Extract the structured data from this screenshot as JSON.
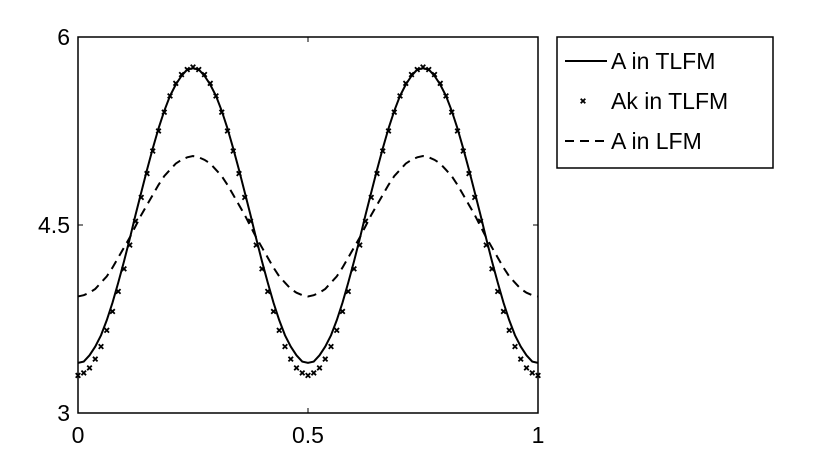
{
  "chart_data": {
    "type": "line",
    "x": [
      0,
      0.0125,
      0.025,
      0.0375,
      0.05,
      0.0625,
      0.075,
      0.0875,
      0.1,
      0.1125,
      0.125,
      0.1375,
      0.15,
      0.1625,
      0.175,
      0.1875,
      0.2,
      0.2125,
      0.225,
      0.2375,
      0.25,
      0.2625,
      0.275,
      0.2875,
      0.3,
      0.3125,
      0.325,
      0.3375,
      0.35,
      0.3625,
      0.375,
      0.3875,
      0.4,
      0.4125,
      0.425,
      0.4375,
      0.45,
      0.4625,
      0.475,
      0.4875,
      0.5,
      0.5125,
      0.525,
      0.5375,
      0.55,
      0.5625,
      0.575,
      0.5875,
      0.6,
      0.6125,
      0.625,
      0.6375,
      0.65,
      0.6625,
      0.675,
      0.6875,
      0.7,
      0.7125,
      0.725,
      0.7375,
      0.75,
      0.7625,
      0.775,
      0.7875,
      0.8,
      0.8125,
      0.825,
      0.8375,
      0.85,
      0.8625,
      0.875,
      0.8875,
      0.9,
      0.9125,
      0.925,
      0.9375,
      0.95,
      0.9625,
      0.975,
      0.9875,
      1
    ],
    "series": [
      {
        "name": "A in TLFM",
        "color": "#000000",
        "style": "solid",
        "values": [
          3.4,
          3.41,
          3.46,
          3.53,
          3.62,
          3.74,
          3.88,
          4.04,
          4.21,
          4.39,
          4.58,
          4.76,
          4.94,
          5.11,
          5.27,
          5.41,
          5.53,
          5.62,
          5.69,
          5.74,
          5.75,
          5.74,
          5.69,
          5.62,
          5.53,
          5.41,
          5.27,
          5.11,
          4.94,
          4.76,
          4.58,
          4.39,
          4.21,
          4.04,
          3.88,
          3.74,
          3.62,
          3.53,
          3.46,
          3.41,
          3.4,
          3.41,
          3.46,
          3.53,
          3.62,
          3.74,
          3.88,
          4.04,
          4.21,
          4.39,
          4.58,
          4.76,
          4.94,
          5.11,
          5.27,
          5.41,
          5.53,
          5.62,
          5.69,
          5.74,
          5.75,
          5.74,
          5.69,
          5.62,
          5.53,
          5.41,
          5.27,
          5.11,
          4.94,
          4.76,
          4.58,
          4.39,
          4.21,
          4.04,
          3.88,
          3.74,
          3.62,
          3.53,
          3.46,
          3.41,
          3.4
        ]
      },
      {
        "name": "Ak in TLFM",
        "color": "#000000",
        "style": "marker",
        "values": [
          3.3,
          3.32,
          3.36,
          3.43,
          3.53,
          3.66,
          3.81,
          3.97,
          4.15,
          4.34,
          4.53,
          4.72,
          4.91,
          5.09,
          5.25,
          5.4,
          5.53,
          5.63,
          5.7,
          5.74,
          5.76,
          5.74,
          5.7,
          5.63,
          5.53,
          5.4,
          5.25,
          5.09,
          4.91,
          4.72,
          4.53,
          4.34,
          4.15,
          3.97,
          3.81,
          3.66,
          3.53,
          3.43,
          3.36,
          3.32,
          3.3,
          3.32,
          3.36,
          3.43,
          3.53,
          3.66,
          3.81,
          3.97,
          4.15,
          4.34,
          4.53,
          4.72,
          4.91,
          5.09,
          5.25,
          5.4,
          5.53,
          5.63,
          5.7,
          5.74,
          5.76,
          5.74,
          5.7,
          5.63,
          5.53,
          5.4,
          5.25,
          5.09,
          4.91,
          4.72,
          4.53,
          4.34,
          4.15,
          3.97,
          3.81,
          3.66,
          3.53,
          3.43,
          3.36,
          3.32,
          3.3
        ]
      },
      {
        "name": "A in LFM",
        "color": "#000000",
        "style": "dashed",
        "values": [
          3.93,
          3.94,
          3.96,
          3.99,
          4.04,
          4.09,
          4.16,
          4.24,
          4.32,
          4.4,
          4.49,
          4.58,
          4.66,
          4.74,
          4.82,
          4.89,
          4.94,
          4.99,
          5.02,
          5.04,
          5.05,
          5.04,
          5.02,
          4.99,
          4.94,
          4.89,
          4.82,
          4.74,
          4.66,
          4.58,
          4.49,
          4.4,
          4.32,
          4.24,
          4.16,
          4.09,
          4.04,
          3.99,
          3.96,
          3.94,
          3.93,
          3.94,
          3.96,
          3.99,
          4.04,
          4.09,
          4.16,
          4.24,
          4.32,
          4.4,
          4.49,
          4.58,
          4.66,
          4.74,
          4.82,
          4.89,
          4.94,
          4.99,
          5.02,
          5.04,
          5.05,
          5.04,
          5.02,
          4.99,
          4.94,
          4.89,
          4.82,
          4.74,
          4.66,
          4.58,
          4.49,
          4.4,
          4.32,
          4.24,
          4.16,
          4.09,
          4.04,
          3.99,
          3.96,
          3.94,
          3.93
        ]
      }
    ],
    "xlim": [
      0,
      1
    ],
    "xticks": [
      0,
      0.5,
      1
    ],
    "ylim": [
      3,
      6
    ],
    "yticks": [
      3,
      4.5,
      6
    ],
    "legend": "outside-upper-right"
  }
}
